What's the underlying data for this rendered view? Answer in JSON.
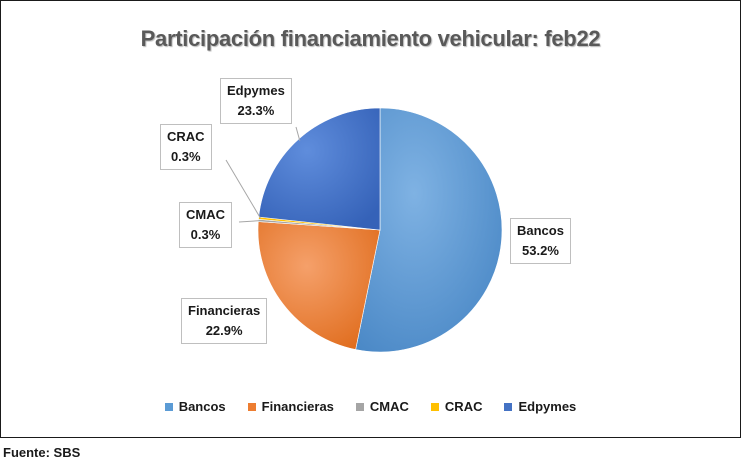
{
  "chart_data": {
    "type": "pie",
    "title": "Participación financiamiento vehicular: feb22",
    "categories": [
      "Bancos",
      "Financieras",
      "CMAC",
      "CRAC",
      "Edpymes"
    ],
    "values": [
      53.2,
      22.9,
      0.3,
      0.3,
      23.3
    ],
    "value_labels": [
      "53.2%",
      "22.9%",
      "0.3%",
      "0.3%",
      "23.3%"
    ],
    "colors": [
      "#5b9bd5",
      "#ed7d31",
      "#a5a5a5",
      "#ffc000",
      "#4472c4"
    ],
    "legend_position": "bottom",
    "start_angle_deg": 0,
    "direction": "clockwise"
  },
  "source_note": "Fuente: SBS"
}
